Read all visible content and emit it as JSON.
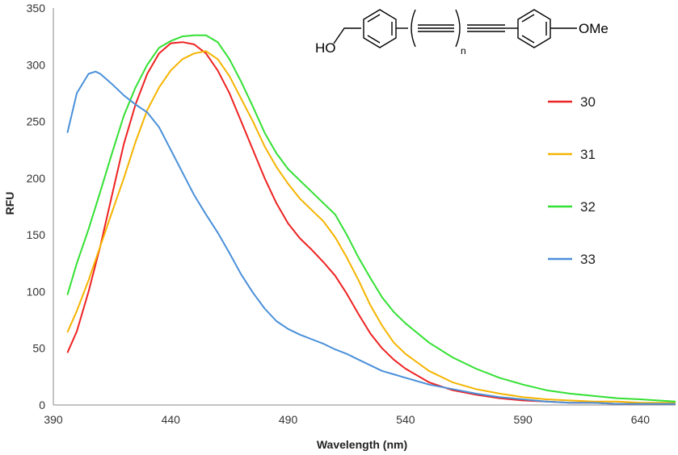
{
  "chart_data": {
    "type": "line",
    "title": "",
    "xlabel": "Wavelength (nm)",
    "ylabel": "RFU",
    "xlim": [
      390,
      655
    ],
    "ylim": [
      0,
      350
    ],
    "xticks": [
      390,
      440,
      490,
      540,
      590,
      640
    ],
    "yticks": [
      0,
      50,
      100,
      150,
      200,
      250,
      300,
      350
    ],
    "grid": false,
    "legend_position": "right",
    "series": [
      {
        "name": "30",
        "color": "#ee2222",
        "x": [
          396,
          400,
          405,
          410,
          415,
          420,
          425,
          430,
          435,
          440,
          445,
          450,
          455,
          460,
          465,
          470,
          475,
          480,
          485,
          490,
          495,
          500,
          505,
          510,
          515,
          520,
          525,
          530,
          535,
          540,
          550,
          560,
          570,
          580,
          590,
          600,
          610,
          620,
          630,
          640,
          655
        ],
        "y": [
          46,
          65,
          100,
          140,
          185,
          230,
          265,
          292,
          310,
          319,
          320,
          318,
          310,
          295,
          275,
          250,
          225,
          200,
          178,
          160,
          147,
          137,
          126,
          114,
          98,
          80,
          63,
          50,
          40,
          32,
          20,
          13,
          9,
          6,
          4,
          3,
          2,
          2,
          1,
          1,
          1
        ]
      },
      {
        "name": "31",
        "color": "#f5b400",
        "x": [
          396,
          400,
          405,
          410,
          415,
          420,
          425,
          430,
          435,
          440,
          445,
          450,
          455,
          460,
          465,
          470,
          475,
          480,
          485,
          490,
          495,
          500,
          505,
          510,
          515,
          520,
          525,
          530,
          535,
          540,
          550,
          560,
          570,
          580,
          590,
          600,
          610,
          620,
          630,
          640,
          655
        ],
        "y": [
          64,
          83,
          110,
          140,
          170,
          200,
          232,
          260,
          280,
          295,
          305,
          310,
          312,
          305,
          290,
          270,
          250,
          228,
          210,
          195,
          182,
          172,
          162,
          148,
          130,
          110,
          88,
          70,
          55,
          45,
          30,
          20,
          14,
          10,
          7,
          5,
          4,
          3,
          3,
          2,
          2
        ]
      },
      {
        "name": "32",
        "color": "#33e033",
        "x": [
          396,
          400,
          405,
          410,
          415,
          420,
          425,
          430,
          435,
          440,
          445,
          450,
          455,
          460,
          465,
          470,
          475,
          480,
          485,
          490,
          495,
          500,
          505,
          510,
          515,
          520,
          525,
          530,
          535,
          540,
          550,
          560,
          570,
          580,
          590,
          600,
          610,
          620,
          630,
          640,
          655
        ],
        "y": [
          97,
          125,
          155,
          188,
          222,
          255,
          280,
          300,
          315,
          321,
          325,
          326,
          326,
          320,
          305,
          285,
          263,
          240,
          222,
          208,
          198,
          188,
          178,
          168,
          150,
          130,
          112,
          95,
          82,
          72,
          55,
          42,
          32,
          24,
          18,
          13,
          10,
          8,
          6,
          5,
          3
        ]
      },
      {
        "name": "33",
        "color": "#4a90d9",
        "x": [
          396,
          400,
          405,
          408,
          410,
          415,
          420,
          425,
          430,
          435,
          440,
          445,
          450,
          455,
          460,
          465,
          470,
          475,
          480,
          485,
          490,
          495,
          500,
          505,
          510,
          515,
          520,
          525,
          530,
          535,
          540,
          550,
          560,
          570,
          580,
          590,
          600,
          610,
          620,
          630,
          640,
          655
        ],
        "y": [
          240,
          275,
          292,
          294,
          292,
          283,
          273,
          265,
          258,
          245,
          225,
          205,
          185,
          168,
          152,
          134,
          115,
          99,
          85,
          74,
          67,
          62,
          58,
          54,
          49,
          45,
          40,
          35,
          30,
          27,
          24,
          18,
          14,
          10,
          7,
          5,
          3,
          2,
          2,
          1,
          1,
          1
        ]
      }
    ]
  },
  "structure": {
    "left_group": "HO",
    "subscript": "n",
    "right_group": "OMe"
  }
}
